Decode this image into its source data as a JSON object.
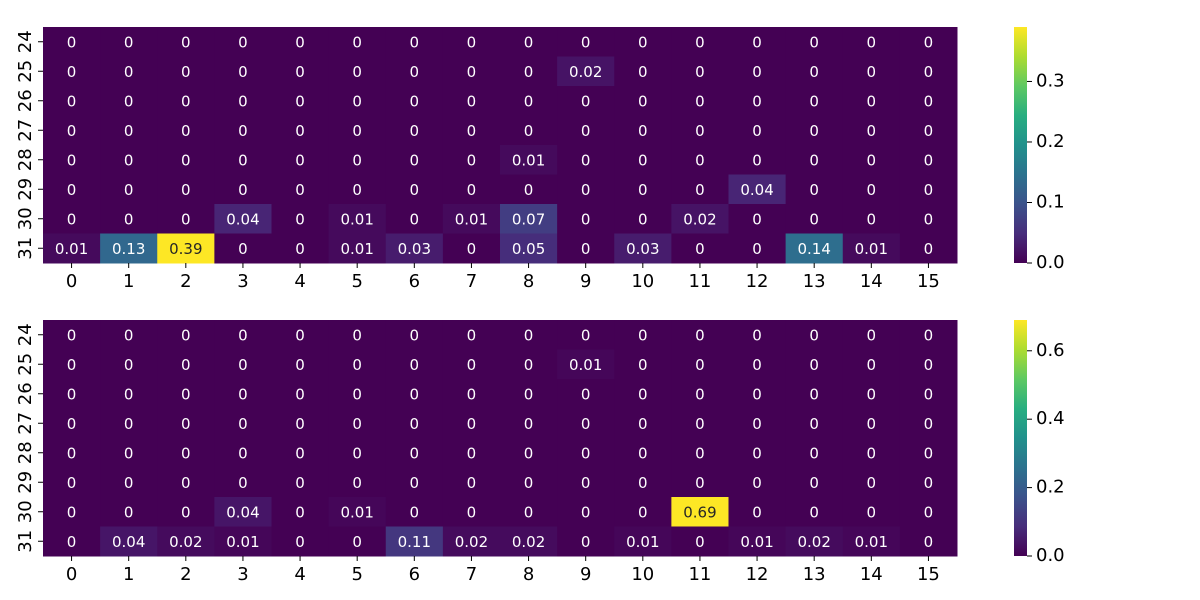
{
  "chart_data": [
    {
      "type": "heatmap",
      "title": "",
      "xlabel": "",
      "ylabel": "",
      "x_categories": [
        "0",
        "1",
        "2",
        "3",
        "4",
        "5",
        "6",
        "7",
        "8",
        "9",
        "10",
        "11",
        "12",
        "13",
        "14",
        "15"
      ],
      "y_categories": [
        "24",
        "25",
        "26",
        "27",
        "28",
        "29",
        "30",
        "31"
      ],
      "values": [
        [
          0,
          0,
          0,
          0,
          0,
          0,
          0,
          0,
          0,
          0,
          0,
          0,
          0,
          0,
          0,
          0
        ],
        [
          0,
          0,
          0,
          0,
          0,
          0,
          0,
          0,
          0,
          0.02,
          0,
          0,
          0,
          0,
          0,
          0
        ],
        [
          0,
          0,
          0,
          0,
          0,
          0,
          0,
          0,
          0,
          0,
          0,
          0,
          0,
          0,
          0,
          0
        ],
        [
          0,
          0,
          0,
          0,
          0,
          0,
          0,
          0,
          0,
          0,
          0,
          0,
          0,
          0,
          0,
          0
        ],
        [
          0,
          0,
          0,
          0,
          0,
          0,
          0,
          0,
          0.01,
          0,
          0,
          0,
          0,
          0,
          0,
          0
        ],
        [
          0,
          0,
          0,
          0,
          0,
          0,
          0,
          0,
          0,
          0,
          0,
          0,
          0.04,
          0,
          0,
          0
        ],
        [
          0,
          0,
          0,
          0.04,
          0,
          0.01,
          0,
          0.01,
          0.07,
          0,
          0,
          0.02,
          0,
          0,
          0,
          0
        ],
        [
          0.01,
          0.13,
          0.39,
          0,
          0,
          0.01,
          0.03,
          0,
          0.05,
          0,
          0.03,
          0,
          0,
          0.14,
          0.01,
          0
        ]
      ],
      "colormap": "viridis",
      "vmin": 0,
      "vmax": 0.39,
      "colorbar_ticks": [
        0.0,
        0.1,
        0.2,
        0.3
      ],
      "colorbar_tick_labels": [
        "0.0",
        "0.1",
        "0.2",
        "0.3"
      ]
    },
    {
      "type": "heatmap",
      "title": "",
      "xlabel": "",
      "ylabel": "",
      "x_categories": [
        "0",
        "1",
        "2",
        "3",
        "4",
        "5",
        "6",
        "7",
        "8",
        "9",
        "10",
        "11",
        "12",
        "13",
        "14",
        "15"
      ],
      "y_categories": [
        "24",
        "25",
        "26",
        "27",
        "28",
        "29",
        "30",
        "31"
      ],
      "values": [
        [
          0,
          0,
          0,
          0,
          0,
          0,
          0,
          0,
          0,
          0,
          0,
          0,
          0,
          0,
          0,
          0
        ],
        [
          0,
          0,
          0,
          0,
          0,
          0,
          0,
          0,
          0,
          0.01,
          0,
          0,
          0,
          0,
          0,
          0
        ],
        [
          0,
          0,
          0,
          0,
          0,
          0,
          0,
          0,
          0,
          0,
          0,
          0,
          0,
          0,
          0,
          0
        ],
        [
          0,
          0,
          0,
          0,
          0,
          0,
          0,
          0,
          0,
          0,
          0,
          0,
          0,
          0,
          0,
          0
        ],
        [
          0,
          0,
          0,
          0,
          0,
          0,
          0,
          0,
          0,
          0,
          0,
          0,
          0,
          0,
          0,
          0
        ],
        [
          0,
          0,
          0,
          0,
          0,
          0,
          0,
          0,
          0,
          0,
          0,
          0,
          0,
          0,
          0,
          0
        ],
        [
          0,
          0,
          0,
          0.04,
          0,
          0.01,
          0,
          0,
          0,
          0,
          0,
          0.69,
          0,
          0,
          0,
          0
        ],
        [
          0,
          0.04,
          0.02,
          0.01,
          0,
          0,
          0.11,
          0.02,
          0.02,
          0,
          0.01,
          0,
          0.01,
          0.02,
          0.01,
          0
        ]
      ],
      "colormap": "viridis",
      "vmin": 0,
      "vmax": 0.69,
      "colorbar_ticks": [
        0.0,
        0.2,
        0.4,
        0.6
      ],
      "colorbar_tick_labels": [
        "0.0",
        "0.2",
        "0.4",
        "0.6"
      ]
    }
  ]
}
